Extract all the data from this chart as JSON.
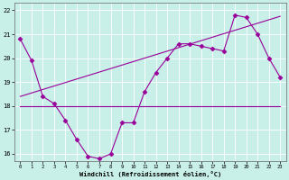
{
  "x_hourly": [
    0,
    1,
    2,
    3,
    4,
    5,
    6,
    7,
    8,
    9,
    10,
    11,
    12,
    13,
    14,
    15,
    16,
    17,
    18,
    19,
    20,
    21,
    22,
    23
  ],
  "windchill": [
    20.8,
    19.9,
    18.4,
    18.1,
    17.4,
    16.6,
    15.9,
    15.8,
    16.0,
    17.3,
    17.3,
    18.6,
    19.4,
    20.0,
    20.6,
    20.6,
    20.5,
    20.4,
    20.3,
    21.8,
    21.7,
    21.0,
    20.0,
    19.2
  ],
  "flat_line_x": [
    0,
    23
  ],
  "flat_line_y": [
    18.0,
    18.0
  ],
  "trend_line_x": [
    0,
    23
  ],
  "trend_line_y": [
    18.4,
    21.75
  ],
  "line_color": "#990099",
  "bg_color": "#c8f0e8",
  "grid_color": "#aaddcc",
  "xlim": [
    -0.5,
    23.5
  ],
  "ylim": [
    15.7,
    22.3
  ],
  "yticks": [
    16,
    17,
    18,
    19,
    20,
    21,
    22
  ],
  "xticks": [
    0,
    1,
    2,
    3,
    4,
    5,
    6,
    7,
    8,
    9,
    10,
    11,
    12,
    13,
    14,
    15,
    16,
    17,
    18,
    19,
    20,
    21,
    22,
    23
  ],
  "xlabel": "Windchill (Refroidissement éolien,°C)",
  "marker": "D",
  "markersize": 2.5,
  "linewidth": 0.8
}
